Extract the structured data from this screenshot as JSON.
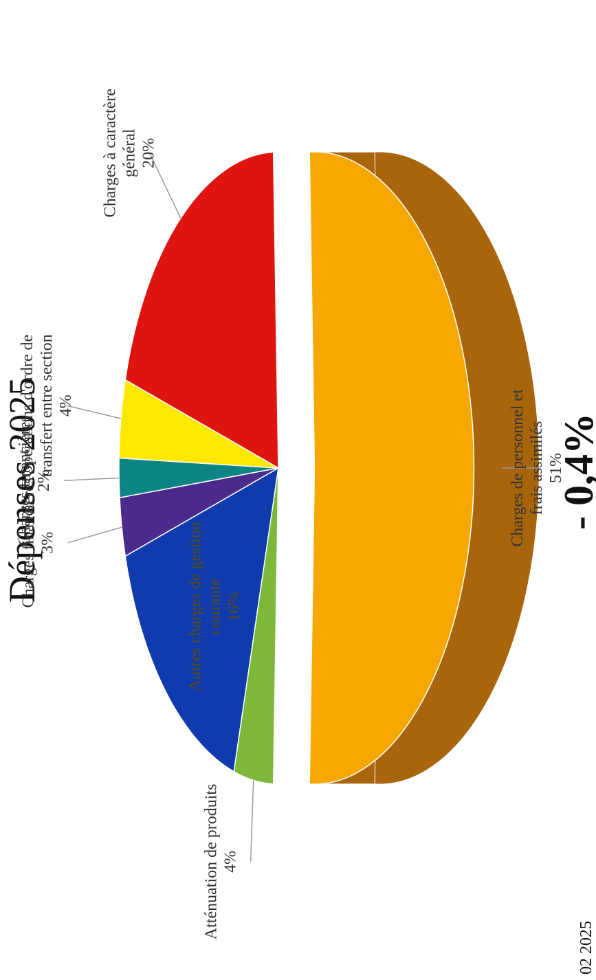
{
  "page": {
    "title": "Dépenses 2025",
    "variation": "- 0,4%",
    "footer": "02 2025"
  },
  "chart_data": {
    "type": "pie",
    "title": "Dépenses 2025",
    "slices": [
      {
        "label": [
          "Charges de personnel et",
          "frais assimilés"
        ],
        "percent_label": "51%",
        "value": 51,
        "color": "#F7A800",
        "side_color": "#A8650C",
        "exploded": true
      },
      {
        "label": [
          "Atténuation de produits"
        ],
        "percent_label": "4%",
        "value": 4,
        "color": "#7DB83A",
        "side_color": "#22361A"
      },
      {
        "label": [
          "Autres charges de gestion",
          "courante"
        ],
        "percent_label": "16%",
        "value": 16,
        "color": "#0F3BAE",
        "side_color": "#0A2266",
        "label_inside": true
      },
      {
        "label": [
          "Charges financières"
        ],
        "percent_label": "3%",
        "value": 3,
        "color": "#4A2A8A",
        "side_color": "#2A1650"
      },
      {
        "label": [
          "Charges financières"
        ],
        "percent_label": "2%",
        "value": 2,
        "color": "#0E8585",
        "side_color": "#0A4E4E"
      },
      {
        "label": [
          "Opérations d'ordre de",
          "transfert entre section"
        ],
        "percent_label": "4%",
        "value": 4,
        "color": "#FFE800",
        "side_color": "#8C8000"
      },
      {
        "label": [
          "Charges à caractère",
          "général"
        ],
        "percent_label": "20%",
        "value": 20,
        "color": "#E0140F",
        "side_color": "#4A1812"
      }
    ]
  }
}
